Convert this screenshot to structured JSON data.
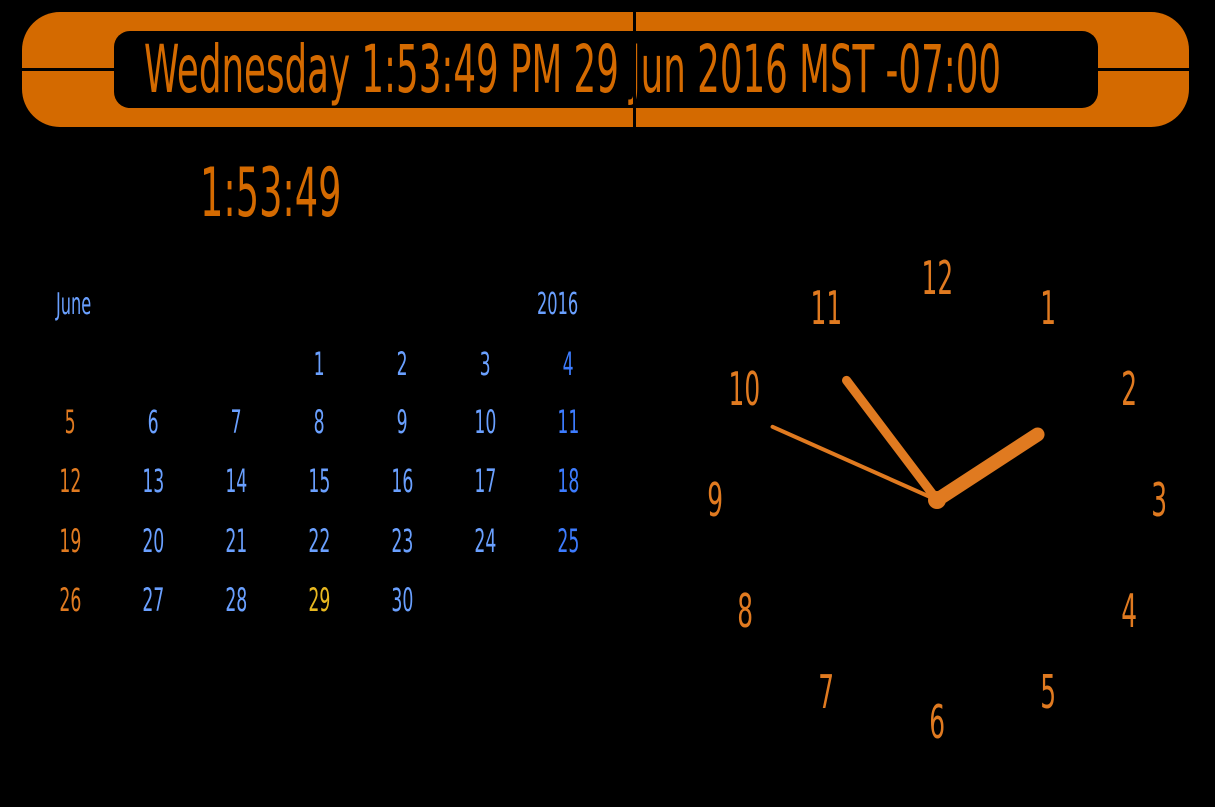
{
  "header": {
    "title": "Wednesday 1:53:49 PM 29 Jun 2016 MST -07:00"
  },
  "digital_time": "1:53:49",
  "calendar": {
    "month": "June",
    "year": "2016",
    "first_weekday_index": 3,
    "today": "29",
    "days": [
      "1",
      "2",
      "3",
      "4",
      "5",
      "6",
      "7",
      "8",
      "9",
      "10",
      "11",
      "12",
      "13",
      "14",
      "15",
      "16",
      "17",
      "18",
      "19",
      "20",
      "21",
      "22",
      "23",
      "24",
      "25",
      "26",
      "27",
      "28",
      "29",
      "30"
    ]
  },
  "clock": {
    "numbers": [
      "12",
      "1",
      "2",
      "3",
      "4",
      "5",
      "6",
      "7",
      "8",
      "9",
      "10",
      "11"
    ],
    "hour": 1,
    "minute": 53,
    "second": 49
  },
  "colors": {
    "accent": "#d46a00",
    "weekday": "#6aa0ff",
    "saturday": "#3d7cff",
    "sunday": "#e07a20",
    "today": "#e8b820",
    "background": "#000000"
  }
}
